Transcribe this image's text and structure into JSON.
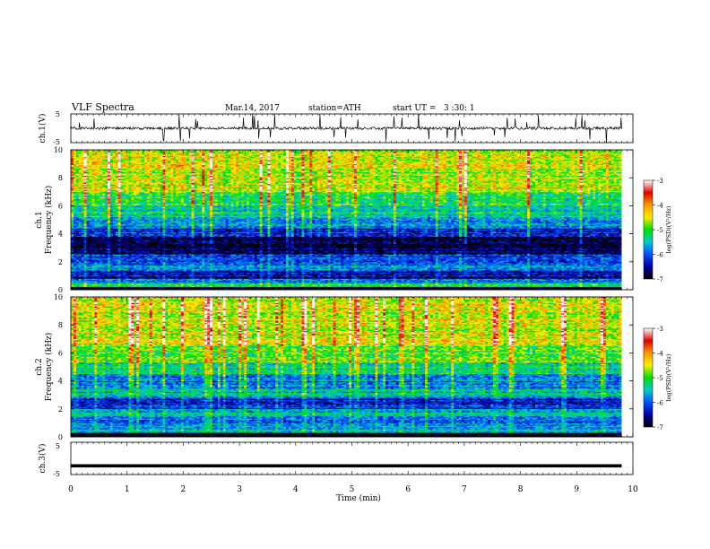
{
  "header": {
    "title": "VLF Spectra",
    "date": "Mar.14, 2017",
    "station": "station=ATH",
    "start_ut": "start UT =   3 :30: 1"
  },
  "colorbar": {
    "label": "log(PSD)(V²/Hz)",
    "ticks": [
      -3,
      -4,
      -5,
      -6,
      -7
    ],
    "colors": [
      "#ffffff",
      "#e00000",
      "#ff9900",
      "#ffee00",
      "#00dd00",
      "#00cccc",
      "#0050ff",
      "#0000a0",
      "#000000"
    ]
  },
  "chart_data": [
    {
      "type": "line",
      "name": "ch1-waveform",
      "ylabel": "ch.1(V)",
      "ylim": [
        -5,
        5
      ],
      "yticks": [
        5,
        -5
      ],
      "xlim": [
        0,
        10
      ],
      "note_values": "baseline near 0 V with frequent spikes to about ±5 V over 0–9.8 min",
      "baseline": 0.0,
      "data_end_min": 9.8
    },
    {
      "type": "heatmap",
      "name": "ch1-spectrogram",
      "ylabel": "ch.1\nFrequency (kHz)",
      "ylim": [
        0,
        10
      ],
      "yticks": [
        0,
        2,
        4,
        6,
        8,
        10
      ],
      "xlim": [
        0,
        10
      ],
      "data_end_min": 9.8,
      "colorbar_range": [
        -7,
        -3
      ],
      "bands": [
        {
          "from": 0.0,
          "to": 0.2,
          "level": -7.0
        },
        {
          "from": 0.2,
          "to": 0.5,
          "level": -5.2
        },
        {
          "from": 0.5,
          "to": 0.8,
          "level": -6.0
        },
        {
          "from": 0.8,
          "to": 1.4,
          "level": -6.4
        },
        {
          "from": 1.4,
          "to": 2.0,
          "level": -5.9
        },
        {
          "from": 2.0,
          "to": 2.6,
          "level": -6.2
        },
        {
          "from": 2.6,
          "to": 3.8,
          "level": -6.8
        },
        {
          "from": 3.8,
          "to": 4.4,
          "level": -6.3
        },
        {
          "from": 4.4,
          "to": 5.2,
          "level": -5.7
        },
        {
          "from": 5.2,
          "to": 6.0,
          "level": -5.3
        },
        {
          "from": 6.0,
          "to": 7.0,
          "level": -5.0
        },
        {
          "from": 7.0,
          "to": 8.5,
          "level": -4.6
        },
        {
          "from": 8.5,
          "to": 10.0,
          "level": -4.5
        }
      ]
    },
    {
      "type": "heatmap",
      "name": "ch2-spectrogram",
      "ylabel": "ch.2\nFrequency (kHz)",
      "ylim": [
        0,
        10
      ],
      "yticks": [
        0,
        2,
        4,
        6,
        8,
        10
      ],
      "xlim": [
        0,
        10
      ],
      "data_end_min": 9.8,
      "colorbar_range": [
        -7,
        -3
      ],
      "bands": [
        {
          "from": 0.0,
          "to": 0.3,
          "level": -7.0
        },
        {
          "from": 0.3,
          "to": 0.8,
          "level": -5.6
        },
        {
          "from": 0.8,
          "to": 1.5,
          "level": -5.9
        },
        {
          "from": 1.5,
          "to": 2.0,
          "level": -5.6
        },
        {
          "from": 2.0,
          "to": 2.8,
          "level": -6.3
        },
        {
          "from": 2.8,
          "to": 3.5,
          "level": -5.5
        },
        {
          "from": 3.5,
          "to": 4.5,
          "level": -5.9
        },
        {
          "from": 4.5,
          "to": 5.3,
          "level": -5.4
        },
        {
          "from": 5.3,
          "to": 6.5,
          "level": -5.0
        },
        {
          "from": 6.5,
          "to": 8.0,
          "level": -4.6
        },
        {
          "from": 8.0,
          "to": 10.0,
          "level": -4.5
        }
      ]
    },
    {
      "type": "line",
      "name": "ch3-waveform",
      "ylabel": "ch.3(V)",
      "ylim": [
        -5,
        5
      ],
      "yticks": [
        5,
        -5
      ],
      "xlim": [
        0,
        10
      ],
      "baseline": -2.3,
      "data_end_min": 9.8
    }
  ],
  "x_axis": {
    "label": "Time (min)",
    "ticks": [
      0,
      1,
      2,
      3,
      4,
      5,
      6,
      7,
      8,
      9,
      10
    ]
  }
}
